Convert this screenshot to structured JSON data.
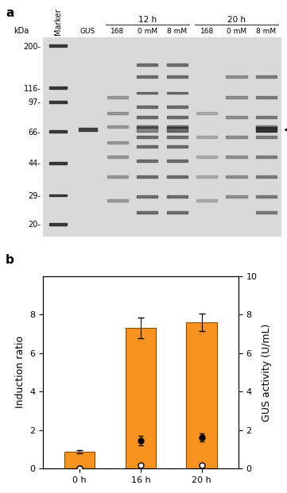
{
  "panel_labels": [
    "a",
    "b"
  ],
  "gel": {
    "unit_label": "kDa",
    "lanes": [
      "Marker",
      "GUS",
      "168",
      "0 mM",
      "8 mM",
      "168",
      "0 mM",
      "8 mM"
    ],
    "groups": [
      {
        "label": "12 h",
        "lanes": [
          2,
          3,
          4
        ]
      },
      {
        "label": "20 h",
        "lanes": [
          5,
          6,
          7
        ]
      }
    ],
    "marker_bands": [
      {
        "value": 200,
        "label": "200-"
      },
      {
        "value": 116,
        "label": "116-"
      },
      {
        "value": 97,
        "label": "97-"
      },
      {
        "value": 66,
        "label": "66-"
      },
      {
        "value": 44,
        "label": "44-"
      },
      {
        "value": 29,
        "label": "29-"
      },
      {
        "value": 20,
        "label": "20-"
      }
    ]
  },
  "chart_data": {
    "type": "bar",
    "categories": [
      "0 h",
      "16 h",
      "20 h"
    ],
    "values": [
      0.88,
      7.3,
      7.58
    ],
    "error": [
      0.08,
      0.55,
      0.45
    ],
    "color": "#f7931e",
    "y_label": "Induction ratio",
    "ylim": [
      0,
      10
    ],
    "yticks": [
      0,
      2,
      4,
      6,
      8
    ],
    "y2_label": "GUS activity (U/mL)",
    "y2lim": [
      0,
      10
    ],
    "y2ticks": [
      0,
      2,
      4,
      6,
      8,
      10
    ],
    "series": [
      {
        "type": "scatter",
        "axis": "y2",
        "color": "#000000",
        "marker": "o",
        "values": [
          0.0,
          1.45,
          1.6
        ],
        "error": [
          0.0,
          0.25,
          0.2
        ]
      },
      {
        "type": "scatter",
        "axis": "y2",
        "color": "#ffffff",
        "marker": "o",
        "values": [
          0.0,
          0.15,
          0.15
        ],
        "error": [
          0.0,
          0.05,
          0.05
        ]
      }
    ]
  }
}
